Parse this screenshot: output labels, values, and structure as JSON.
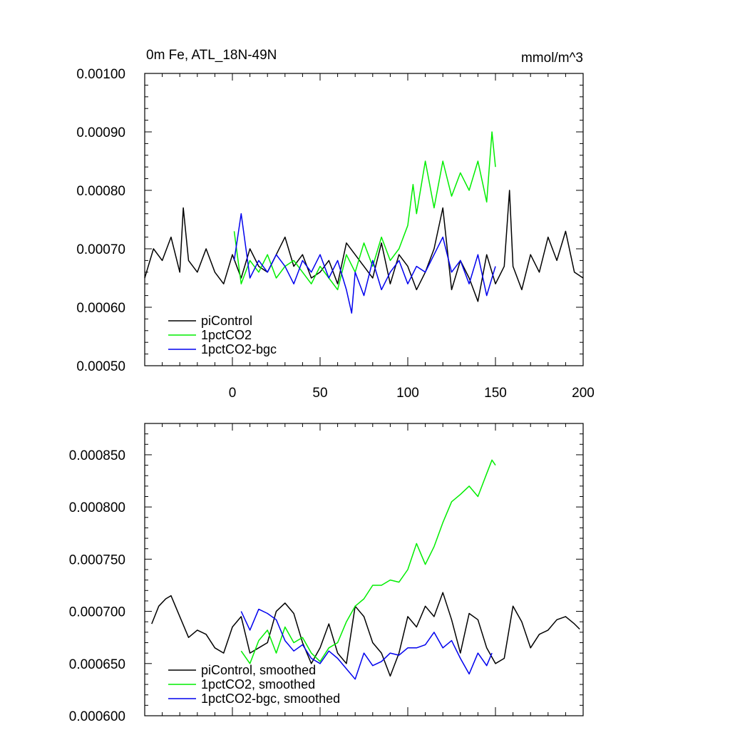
{
  "chart_data": [
    {
      "type": "line",
      "title": "0m Fe, ATL_18N-49N",
      "units": "mmol/m^3",
      "xlim": [
        -50,
        200
      ],
      "ylim": [
        0.0005,
        0.001
      ],
      "yticks": [
        0.0005,
        0.0006,
        0.0007,
        0.0008,
        0.0009,
        0.001
      ],
      "ytick_labels": [
        "0.00050",
        "0.00060",
        "0.00070",
        "0.00080",
        "0.00090",
        "0.00100"
      ],
      "xticks": [
        0,
        50,
        100,
        150,
        200
      ],
      "xtick_labels": [
        "0",
        "50",
        "100",
        "150",
        "200"
      ],
      "legend": [
        "piControl",
        "1pctCO2",
        "1pctCO2-bgc"
      ],
      "legend_position": "bottom-left",
      "series": [
        {
          "name": "piControl",
          "color": "#000000",
          "x": [
            -50,
            -45,
            -40,
            -35,
            -30,
            -28,
            -25,
            -20,
            -15,
            -10,
            -5,
            0,
            5,
            10,
            15,
            20,
            25,
            30,
            35,
            40,
            45,
            50,
            55,
            60,
            65,
            70,
            75,
            80,
            85,
            90,
            95,
            100,
            105,
            110,
            115,
            120,
            125,
            130,
            135,
            140,
            145,
            150,
            155,
            158,
            160,
            165,
            170,
            175,
            180,
            185,
            190,
            195,
            200
          ],
          "values": [
            0.00065,
            0.0007,
            0.00068,
            0.00072,
            0.00066,
            0.00077,
            0.00068,
            0.00066,
            0.0007,
            0.00066,
            0.00064,
            0.00069,
            0.00065,
            0.0007,
            0.00067,
            0.00066,
            0.00069,
            0.00072,
            0.00067,
            0.00069,
            0.00065,
            0.00066,
            0.00068,
            0.00064,
            0.00071,
            0.00069,
            0.00067,
            0.00065,
            0.00071,
            0.00064,
            0.00069,
            0.00067,
            0.00063,
            0.00066,
            0.0007,
            0.00077,
            0.00063,
            0.00068,
            0.00065,
            0.00061,
            0.00069,
            0.00064,
            0.00067,
            0.0008,
            0.00067,
            0.00063,
            0.00069,
            0.00066,
            0.00072,
            0.00068,
            0.00073,
            0.00066,
            0.00065
          ]
        },
        {
          "name": "1pctCO2",
          "color": "#00ee00",
          "x": [
            1,
            5,
            10,
            15,
            20,
            25,
            30,
            35,
            40,
            45,
            50,
            55,
            60,
            65,
            70,
            75,
            80,
            85,
            90,
            95,
            100,
            103,
            105,
            110,
            115,
            120,
            125,
            130,
            135,
            140,
            145,
            148,
            150
          ],
          "values": [
            0.00073,
            0.00064,
            0.00068,
            0.00066,
            0.00069,
            0.00065,
            0.00067,
            0.00068,
            0.00066,
            0.00064,
            0.00067,
            0.00065,
            0.00063,
            0.00069,
            0.00066,
            0.00071,
            0.00067,
            0.00072,
            0.00068,
            0.0007,
            0.00074,
            0.00081,
            0.00076,
            0.00085,
            0.00077,
            0.00085,
            0.00079,
            0.00083,
            0.0008,
            0.00085,
            0.00078,
            0.0009,
            0.00084
          ]
        },
        {
          "name": "1pctCO2-bgc",
          "color": "#0000ee",
          "x": [
            1,
            5,
            10,
            15,
            20,
            25,
            30,
            35,
            40,
            45,
            50,
            55,
            60,
            65,
            68,
            70,
            75,
            80,
            85,
            90,
            95,
            100,
            105,
            110,
            115,
            120,
            125,
            130,
            135,
            140,
            145,
            150
          ],
          "values": [
            0.00068,
            0.00076,
            0.00065,
            0.00068,
            0.00066,
            0.00069,
            0.00067,
            0.00064,
            0.00068,
            0.00066,
            0.00069,
            0.00065,
            0.00068,
            0.00063,
            0.00059,
            0.00066,
            0.00062,
            0.00068,
            0.00063,
            0.00066,
            0.00068,
            0.00064,
            0.00067,
            0.00066,
            0.00069,
            0.00072,
            0.00066,
            0.00068,
            0.00064,
            0.00069,
            0.00062,
            0.00067
          ]
        }
      ]
    },
    {
      "type": "line",
      "title": "",
      "xlim": [
        -50,
        200
      ],
      "ylim": [
        0.0006,
        0.00088
      ],
      "yticks": [
        0.0006,
        0.00065,
        0.0007,
        0.00075,
        0.0008,
        0.00085
      ],
      "ytick_labels": [
        "0.000600",
        "0.000650",
        "0.000700",
        "0.000750",
        "0.000800",
        "0.000850"
      ],
      "xticks": [
        0,
        50,
        100,
        150,
        200
      ],
      "legend": [
        "piControl, smoothed",
        "1pctCO2, smoothed",
        "1pctCO2-bgc, smoothed"
      ],
      "legend_position": "bottom-left",
      "series": [
        {
          "name": "piControl, smoothed",
          "color": "#000000",
          "x": [
            -46,
            -42,
            -38,
            -35,
            -30,
            -25,
            -20,
            -15,
            -10,
            -5,
            0,
            5,
            10,
            15,
            20,
            25,
            30,
            35,
            40,
            45,
            50,
            55,
            60,
            65,
            70,
            75,
            80,
            85,
            90,
            95,
            100,
            105,
            110,
            115,
            120,
            125,
            130,
            135,
            140,
            145,
            150,
            155,
            160,
            165,
            170,
            175,
            180,
            185,
            190,
            195,
            198
          ],
          "values": [
            0.000688,
            0.000705,
            0.000712,
            0.000715,
            0.000695,
            0.000675,
            0.000682,
            0.000678,
            0.000665,
            0.00066,
            0.000685,
            0.000695,
            0.00066,
            0.000665,
            0.00067,
            0.0007,
            0.000708,
            0.000698,
            0.00067,
            0.00065,
            0.000665,
            0.000688,
            0.00066,
            0.00065,
            0.000705,
            0.000695,
            0.00067,
            0.00066,
            0.000638,
            0.00066,
            0.000695,
            0.000685,
            0.000705,
            0.000695,
            0.000718,
            0.000692,
            0.00066,
            0.000698,
            0.000692,
            0.000665,
            0.00065,
            0.000655,
            0.000705,
            0.00069,
            0.000665,
            0.000678,
            0.000682,
            0.000692,
            0.000695,
            0.000688,
            0.000683
          ]
        },
        {
          "name": "1pctCO2, smoothed",
          "color": "#00ee00",
          "x": [
            5,
            10,
            15,
            20,
            25,
            30,
            35,
            40,
            45,
            50,
            55,
            60,
            65,
            70,
            75,
            80,
            85,
            90,
            95,
            100,
            105,
            110,
            115,
            120,
            125,
            130,
            135,
            140,
            145,
            148,
            150
          ],
          "values": [
            0.000662,
            0.00065,
            0.000672,
            0.000682,
            0.00066,
            0.000685,
            0.00067,
            0.000675,
            0.00066,
            0.000652,
            0.000665,
            0.00067,
            0.00069,
            0.000705,
            0.000712,
            0.000725,
            0.000725,
            0.00073,
            0.000728,
            0.00074,
            0.000765,
            0.000745,
            0.000762,
            0.000785,
            0.000805,
            0.000812,
            0.00082,
            0.00081,
            0.000832,
            0.000845,
            0.00084
          ]
        },
        {
          "name": "1pctCO2-bgc, smoothed",
          "color": "#0000ee",
          "x": [
            5,
            10,
            15,
            20,
            25,
            30,
            35,
            40,
            45,
            50,
            55,
            60,
            65,
            70,
            75,
            80,
            85,
            90,
            95,
            100,
            105,
            110,
            115,
            120,
            125,
            130,
            135,
            140,
            145,
            148
          ],
          "values": [
            0.0007,
            0.000682,
            0.000702,
            0.000698,
            0.000692,
            0.000672,
            0.000662,
            0.000668,
            0.000655,
            0.00065,
            0.000662,
            0.000655,
            0.000645,
            0.000635,
            0.00066,
            0.000648,
            0.000652,
            0.00066,
            0.000658,
            0.000665,
            0.000665,
            0.000668,
            0.00068,
            0.000665,
            0.000672,
            0.000655,
            0.00064,
            0.00066,
            0.000648,
            0.00066
          ]
        }
      ]
    }
  ]
}
